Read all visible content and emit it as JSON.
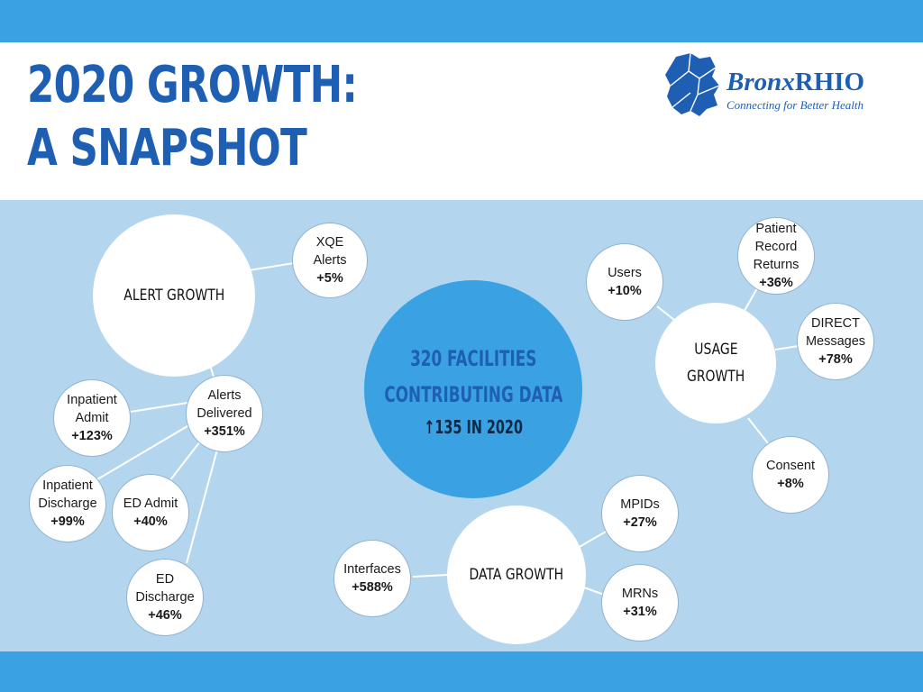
{
  "header": {
    "title_line1": "2020 GROWTH:",
    "title_line2": "A SNAPSHOT"
  },
  "logo": {
    "name_bronx": "Bronx",
    "name_rhio": "RHIO",
    "tagline": "Connecting for Better Health"
  },
  "colors": {
    "banner": "#3aa2e2",
    "panel": "#b3d5ee",
    "title": "#1e5fb4",
    "center": "#3aa2e2"
  },
  "center": {
    "line1": "320 FACILITIES",
    "line2": "CONTRIBUTING DATA",
    "arrow": "↑",
    "sub": "135 IN 2020"
  },
  "alert_growth": {
    "label": "ALERT GROWTH",
    "xqe": {
      "label_line1": "XQE",
      "label_line2": "Alerts",
      "value": "+5%"
    },
    "delivered": {
      "label_line1": "Alerts",
      "label_line2": "Delivered",
      "value": "+351%"
    },
    "inpatient_admit": {
      "label_line1": "Inpatient",
      "label_line2": "Admit",
      "value": "+123%"
    },
    "inpatient_discharge": {
      "label_line1": "Inpatient",
      "label_line2": "Discharge",
      "value": "+99%"
    },
    "ed_admit": {
      "label": "ED Admit",
      "value": "+40%"
    },
    "ed_discharge": {
      "label_line1": "ED",
      "label_line2": "Discharge",
      "value": "+46%"
    }
  },
  "usage_growth": {
    "label_line1": "USAGE",
    "label_line2": "GROWTH",
    "users": {
      "label": "Users",
      "value": "+10%"
    },
    "patient_record": {
      "label_line1": "Patient",
      "label_line2": "Record",
      "label_line3": "Returns",
      "value": "+36%"
    },
    "direct": {
      "label_line1": "DIRECT",
      "label_line2": "Messages",
      "value": "+78%"
    },
    "consent": {
      "label": "Consent",
      "value": "+8%"
    }
  },
  "data_growth": {
    "label": "DATA GROWTH",
    "interfaces": {
      "label": "Interfaces",
      "value": "+588%"
    },
    "mpids": {
      "label": "MPIDs",
      "value": "+27%"
    },
    "mrns": {
      "label": "MRNs",
      "value": "+31%"
    }
  }
}
